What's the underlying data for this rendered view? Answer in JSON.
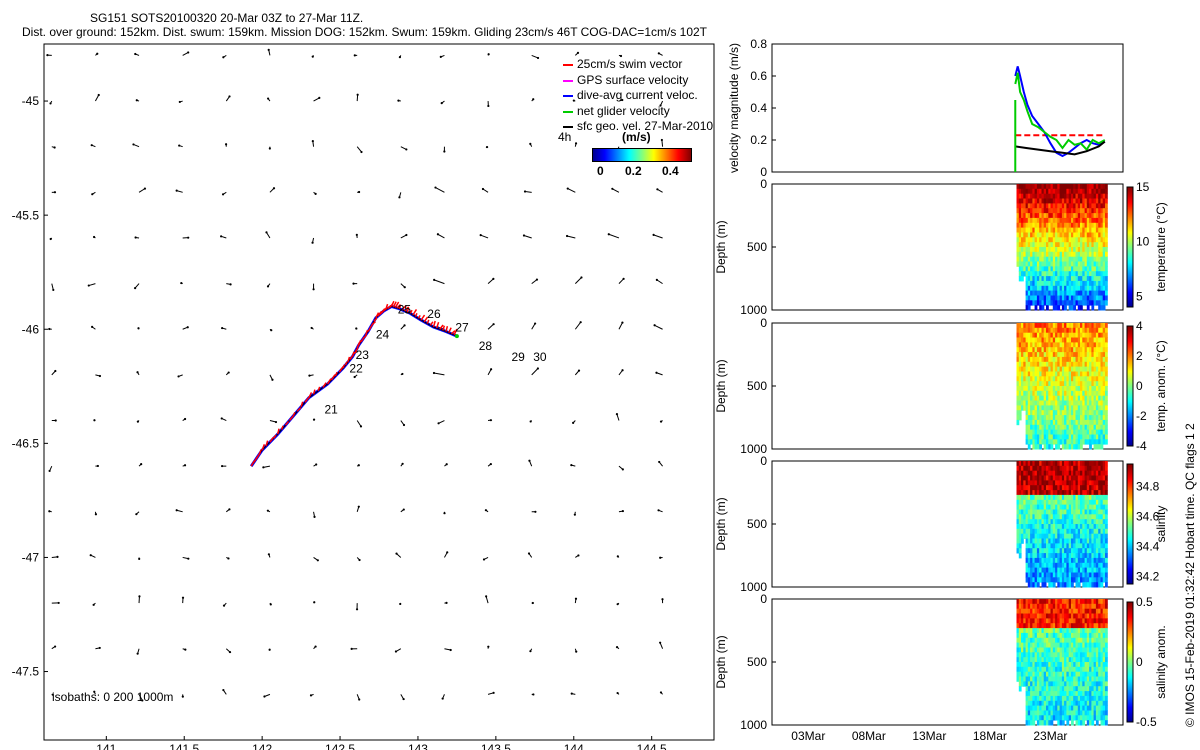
{
  "figure": {
    "title_line1": "SG151 SOTS20100320 20-Mar 03Z to 27-Mar 11Z.",
    "title_line2": "Dist. over ground: 152km. Dist. swum: 159km. Mission DOG: 152km. Swum: 159km. Gliding 23cm/s 46T COG-DAC=1cm/s 102T",
    "side_note": "© IMOS 15-Feb-2019 01:32:42 Hobart time. QC flags 1  2",
    "isobaths_text": "isobaths: 0   200  1000m"
  },
  "legend": {
    "items": [
      {
        "label": "25cm/s swim vector",
        "color": "#ff0000"
      },
      {
        "label": "GPS surface velocity",
        "color": "#ff00ff"
      },
      {
        "label": "dive-avg current veloc.",
        "color": "#0000ff"
      },
      {
        "label": "net glider velocity",
        "color": "#00cc00"
      },
      {
        "label": "sfc geo. vel. 27-Mar-2010",
        "color": "#000000"
      }
    ],
    "time_label": "4h",
    "colorbar_title": "(m/s)",
    "colorbar_ticks": [
      "0",
      "0.2",
      "0.4"
    ]
  },
  "chart_data": [
    {
      "type": "scatter",
      "xlim": [
        140.6,
        144.9
      ],
      "ylim": [
        -47.8,
        -44.75
      ],
      "xticks": [
        141,
        141.5,
        142,
        142.5,
        143,
        143.5,
        144,
        144.5
      ],
      "xtick_labels": [
        "141",
        "141.5",
        "142",
        "142.5",
        "143",
        "143.5",
        "144",
        "144.5"
      ],
      "yticks": [
        -45,
        -45.5,
        -46,
        -46.5,
        -47,
        -47.5
      ],
      "ytick_labels": [
        "-45",
        "-45.5",
        "-46",
        "-46.5",
        "-47",
        "-47.5"
      ],
      "track": {
        "lon": [
          141.93,
          142.0,
          142.1,
          142.2,
          142.3,
          142.42,
          142.52,
          142.58,
          142.62,
          142.68,
          142.73,
          142.78,
          142.83,
          142.88,
          142.95,
          143.02,
          143.1,
          143.18,
          143.25
        ],
        "lat": [
          -46.6,
          -46.53,
          -46.46,
          -46.38,
          -46.3,
          -46.24,
          -46.17,
          -46.12,
          -46.07,
          -46.01,
          -45.95,
          -45.92,
          -45.9,
          -45.91,
          -45.93,
          -45.96,
          -45.99,
          -46.01,
          -46.03
        ]
      },
      "day_labels": [
        {
          "text": "21",
          "lon": 142.4,
          "lat": -46.37
        },
        {
          "text": "22",
          "lon": 142.56,
          "lat": -46.19
        },
        {
          "text": "23",
          "lon": 142.6,
          "lat": -46.13
        },
        {
          "text": "24",
          "lon": 142.73,
          "lat": -46.04
        },
        {
          "text": "25",
          "lon": 142.87,
          "lat": -45.93
        },
        {
          "text": "26",
          "lon": 143.06,
          "lat": -45.95
        },
        {
          "text": "27",
          "lon": 143.24,
          "lat": -46.01
        },
        {
          "text": "28",
          "lon": 143.39,
          "lat": -46.09
        },
        {
          "text": "29",
          "lon": 143.6,
          "lat": -46.14
        },
        {
          "text": "30",
          "lon": 143.74,
          "lat": -46.14
        }
      ]
    },
    {
      "type": "line",
      "ylabel": "velocity magnitude (m/s)",
      "ylim": [
        0,
        0.8
      ],
      "yticks": [
        0,
        0.2,
        0.4,
        0.6,
        0.8
      ],
      "ytick_labels": [
        "0",
        "0.2",
        "0.4",
        "0.6",
        "0.8"
      ],
      "series": [
        {
          "color": "#ff0000",
          "x": [
            20.1,
            27.5
          ],
          "values": [
            0.23,
            0.23
          ]
        },
        {
          "color": "#0000ff",
          "x": [
            20.1,
            20.3,
            20.5,
            20.8,
            21.1,
            21.5,
            22.0,
            22.5,
            23.0,
            23.5,
            24.0,
            24.5,
            25.0,
            25.5,
            26.0,
            26.5,
            27.0,
            27.5
          ],
          "values": [
            0.6,
            0.66,
            0.6,
            0.5,
            0.42,
            0.35,
            0.3,
            0.25,
            0.18,
            0.12,
            0.1,
            0.12,
            0.15,
            0.18,
            0.2,
            0.18,
            0.17,
            0.19
          ]
        },
        {
          "color": "#00cc00",
          "x": [
            20.1,
            20.3,
            20.5,
            20.8,
            21.1,
            21.5,
            22.0,
            22.5,
            23.0,
            23.5,
            24.0,
            24.5,
            25.0,
            25.5,
            26.0,
            26.5,
            27.0,
            27.5
          ],
          "values": [
            0.55,
            0.62,
            0.5,
            0.45,
            0.38,
            0.3,
            0.28,
            0.25,
            0.22,
            0.2,
            0.15,
            0.2,
            0.17,
            0.18,
            0.14,
            0.2,
            0.18,
            0.2
          ]
        },
        {
          "color": "#000000",
          "x": [
            20.1,
            21.0,
            22.0,
            23.0,
            24.0,
            25.0,
            26.0,
            27.0,
            27.5
          ],
          "values": [
            0.16,
            0.15,
            0.14,
            0.13,
            0.12,
            0.11,
            0.13,
            0.16,
            0.19
          ]
        }
      ]
    },
    {
      "type": "heatmap",
      "ylabel": "Depth (m)",
      "clabel": "temperature (°C)",
      "clim": [
        4,
        15
      ],
      "cticks": [
        5,
        10,
        15
      ],
      "ctick_labels": [
        "5",
        "10",
        "15"
      ],
      "yticks": [
        0,
        500,
        1000
      ],
      "ytick_labels": [
        "0",
        "500",
        "1000"
      ]
    },
    {
      "type": "heatmap",
      "ylabel": "Depth (m)",
      "clabel": "temp. anom. (°C)",
      "clim": [
        -4,
        4
      ],
      "cticks": [
        -4,
        -2,
        0,
        2,
        4
      ],
      "ctick_labels": [
        "-4",
        "-2",
        "0",
        "2",
        "4"
      ],
      "yticks": [
        0,
        500,
        1000
      ],
      "ytick_labels": [
        "0",
        "500",
        "1000"
      ]
    },
    {
      "type": "heatmap",
      "ylabel": "Depth (m)",
      "clabel": "salinity",
      "clim": [
        34.15,
        34.95
      ],
      "cticks": [
        34.2,
        34.4,
        34.6,
        34.8
      ],
      "ctick_labels": [
        "34.2",
        "34.4",
        "34.6",
        "34.8"
      ],
      "yticks": [
        0,
        500,
        1000
      ],
      "ytick_labels": [
        "0",
        "500",
        "1000"
      ]
    },
    {
      "type": "heatmap",
      "ylabel": "Depth (m)",
      "clabel": "salinity anom.",
      "clim": [
        -0.5,
        0.5
      ],
      "cticks": [
        -0.5,
        0,
        0.5
      ],
      "ctick_labels": [
        "-0.5",
        "0",
        "0.5"
      ],
      "yticks": [
        0,
        500,
        1000
      ],
      "ytick_labels": [
        "0",
        "500",
        "1000"
      ],
      "xtick_labels": [
        "03Mar",
        "08Mar",
        "13Mar",
        "18Mar",
        "23Mar"
      ]
    }
  ]
}
